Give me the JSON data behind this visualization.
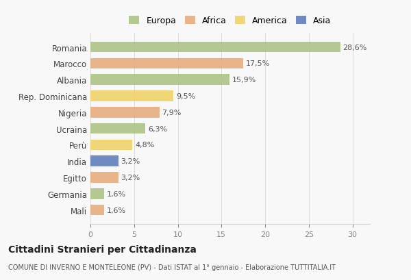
{
  "categories": [
    "Romania",
    "Marocco",
    "Albania",
    "Rep. Dominicana",
    "Nigeria",
    "Ucraina",
    "Perù",
    "India",
    "Egitto",
    "Germania",
    "Mali"
  ],
  "values": [
    28.6,
    17.5,
    15.9,
    9.5,
    7.9,
    6.3,
    4.8,
    3.2,
    3.2,
    1.6,
    1.6
  ],
  "labels": [
    "28,6%",
    "17,5%",
    "15,9%",
    "9,5%",
    "7,9%",
    "6,3%",
    "4,8%",
    "3,2%",
    "3,2%",
    "1,6%",
    "1,6%"
  ],
  "continents": [
    "Europa",
    "Africa",
    "Europa",
    "America",
    "Africa",
    "Europa",
    "America",
    "Asia",
    "Africa",
    "Europa",
    "Africa"
  ],
  "colors": {
    "Europa": "#a8c080",
    "Africa": "#e8a878",
    "America": "#f0d060",
    "Asia": "#5878b8"
  },
  "legend_colors": {
    "Europa": "#a8c080",
    "Africa": "#e8a878",
    "America": "#f0d060",
    "Asia": "#5878b8"
  },
  "xlim": [
    0,
    32
  ],
  "xticks": [
    0,
    5,
    10,
    15,
    20,
    25,
    30
  ],
  "title": "Cittadini Stranieri per Cittadinanza",
  "subtitle": "COMUNE DI INVERNO E MONTELEONE (PV) - Dati ISTAT al 1° gennaio - Elaborazione TUTTITALIA.IT",
  "background_color": "#f8f8f8",
  "bar_background": "#ffffff"
}
